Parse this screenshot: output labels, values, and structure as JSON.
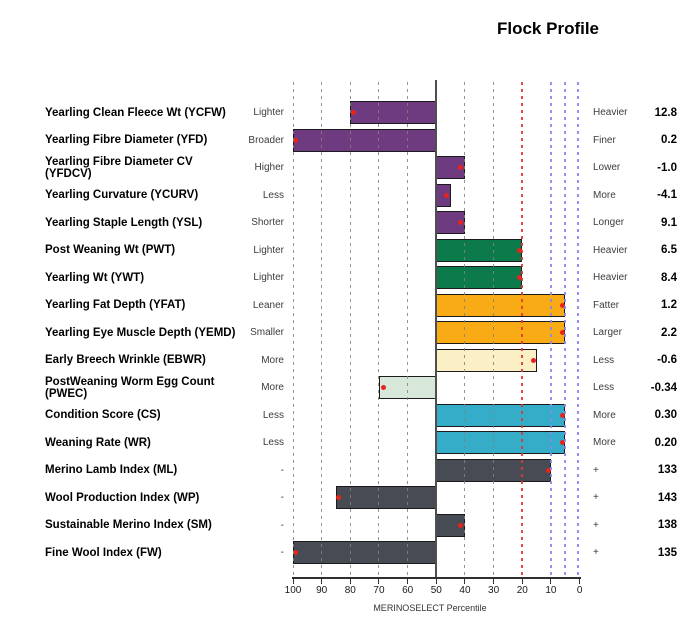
{
  "title": "Flock Profile",
  "colors": {
    "purple": "#6e3b80",
    "green": "#0d7a4b",
    "orange": "#f9ab16",
    "pale_yellow": "#fbf0c5",
    "pale_green": "#d7e8da",
    "cyan": "#35adc8",
    "dark_gray": "#474c54",
    "marker_red": "#e8231d",
    "grid_gray": "#828282",
    "line_50": "#4f4f4f",
    "line_20_red": "#e03730",
    "line_top_blue": "#8888ee"
  },
  "chart_data": {
    "type": "bar",
    "orientation": "horizontal",
    "title": "Flock Profile",
    "xlabel": "MERINOSELECT Percentile",
    "x_axis": {
      "label": "MERINOSELECT Percentile",
      "ticks": [
        100,
        90,
        80,
        70,
        60,
        50,
        40,
        30,
        20,
        10,
        0
      ],
      "direction": "100 at left, 0 at right"
    },
    "gridlines": [
      {
        "percentile": 100,
        "kind": "grid"
      },
      {
        "percentile": 90,
        "kind": "grid"
      },
      {
        "percentile": 80,
        "kind": "grid"
      },
      {
        "percentile": 70,
        "kind": "grid"
      },
      {
        "percentile": 60,
        "kind": "grid"
      },
      {
        "percentile": 50,
        "kind": "major"
      },
      {
        "percentile": 40,
        "kind": "grid"
      },
      {
        "percentile": 30,
        "kind": "grid"
      },
      {
        "percentile": 20,
        "kind": "target"
      },
      {
        "percentile": 10,
        "kind": "top"
      },
      {
        "percentile": 5,
        "kind": "top"
      },
      {
        "percentile": 0.5,
        "kind": "top"
      }
    ],
    "rows": [
      {
        "trait": "Yearling Clean Fleece Wt (YCFW)",
        "left_label": "Lighter",
        "right_label": "Heavier",
        "value": "12.8",
        "bar_from_percentile": 80,
        "bar_to_percentile": 50,
        "marker_percentile": 79,
        "color_key": "purple"
      },
      {
        "trait": "Yearling Fibre Diameter (YFD)",
        "left_label": "Broader",
        "right_label": "Finer",
        "value": "0.2",
        "bar_from_percentile": 100,
        "bar_to_percentile": 50,
        "marker_percentile": 99,
        "color_key": "purple"
      },
      {
        "trait": "Yearling Fibre Diameter CV (YFDCV)",
        "left_label": "Higher",
        "right_label": "Lower",
        "value": "-1.0",
        "bar_from_percentile": 50,
        "bar_to_percentile": 40,
        "marker_percentile": 41.5,
        "color_key": "purple"
      },
      {
        "trait": "Yearling Curvature (YCURV)",
        "left_label": "Less",
        "right_label": "More",
        "value": "-4.1",
        "bar_from_percentile": 50,
        "bar_to_percentile": 45,
        "marker_percentile": 46.5,
        "color_key": "purple"
      },
      {
        "trait": "Yearling Staple Length (YSL)",
        "left_label": "Shorter",
        "right_label": "Longer",
        "value": "9.1",
        "bar_from_percentile": 50,
        "bar_to_percentile": 40,
        "marker_percentile": 41.5,
        "color_key": "purple"
      },
      {
        "trait": "Post Weaning Wt (PWT)",
        "left_label": "Lighter",
        "right_label": "Heavier",
        "value": "6.5",
        "bar_from_percentile": 50,
        "bar_to_percentile": 20,
        "marker_percentile": 21,
        "color_key": "green"
      },
      {
        "trait": "Yearling Wt (YWT)",
        "left_label": "Lighter",
        "right_label": "Heavier",
        "value": "8.4",
        "bar_from_percentile": 50,
        "bar_to_percentile": 20,
        "marker_percentile": 21,
        "color_key": "green"
      },
      {
        "trait": "Yearling Fat Depth (YFAT)",
        "left_label": "Leaner",
        "right_label": "Fatter",
        "value": "1.2",
        "bar_from_percentile": 50,
        "bar_to_percentile": 5,
        "marker_percentile": 6,
        "color_key": "orange"
      },
      {
        "trait": "Yearling Eye Muscle Depth (YEMD)",
        "left_label": "Smaller",
        "right_label": "Larger",
        "value": "2.2",
        "bar_from_percentile": 50,
        "bar_to_percentile": 5,
        "marker_percentile": 6,
        "color_key": "orange"
      },
      {
        "trait": "Early Breech Wrinkle (EBWR)",
        "left_label": "More",
        "right_label": "Less",
        "value": "-0.6",
        "bar_from_percentile": 50,
        "bar_to_percentile": 15,
        "marker_percentile": 16,
        "color_key": "pale_yellow"
      },
      {
        "trait": "PostWeaning Worm Egg Count (PWEC)",
        "left_label": "More",
        "right_label": "Less",
        "value": "-0.34",
        "bar_from_percentile": 70,
        "bar_to_percentile": 50,
        "marker_percentile": 68.5,
        "color_key": "pale_green"
      },
      {
        "trait": "Condition Score (CS)",
        "left_label": "Less",
        "right_label": "More",
        "value": "0.30",
        "bar_from_percentile": 50,
        "bar_to_percentile": 5,
        "marker_percentile": 6,
        "color_key": "cyan"
      },
      {
        "trait": "Weaning Rate (WR)",
        "left_label": "Less",
        "right_label": "More",
        "value": "0.20",
        "bar_from_percentile": 50,
        "bar_to_percentile": 5,
        "marker_percentile": 6,
        "color_key": "cyan"
      },
      {
        "trait": "Merino Lamb Index (ML)",
        "left_label": "-",
        "right_label": "+",
        "value": "133",
        "bar_from_percentile": 50,
        "bar_to_percentile": 10,
        "marker_percentile": 11,
        "color_key": "dark_gray"
      },
      {
        "trait": "Wool Production Index (WP)",
        "left_label": "-",
        "right_label": "+",
        "value": "143",
        "bar_from_percentile": 85,
        "bar_to_percentile": 50,
        "marker_percentile": 84,
        "color_key": "dark_gray"
      },
      {
        "trait": "Sustainable Merino Index (SM)",
        "left_label": "-",
        "right_label": "+",
        "value": "138",
        "bar_from_percentile": 50,
        "bar_to_percentile": 40,
        "marker_percentile": 41.5,
        "color_key": "dark_gray"
      },
      {
        "trait": "Fine Wool Index (FW)",
        "left_label": "-",
        "right_label": "+",
        "value": "135",
        "bar_from_percentile": 100,
        "bar_to_percentile": 50,
        "marker_percentile": 99,
        "color_key": "dark_gray"
      }
    ]
  }
}
